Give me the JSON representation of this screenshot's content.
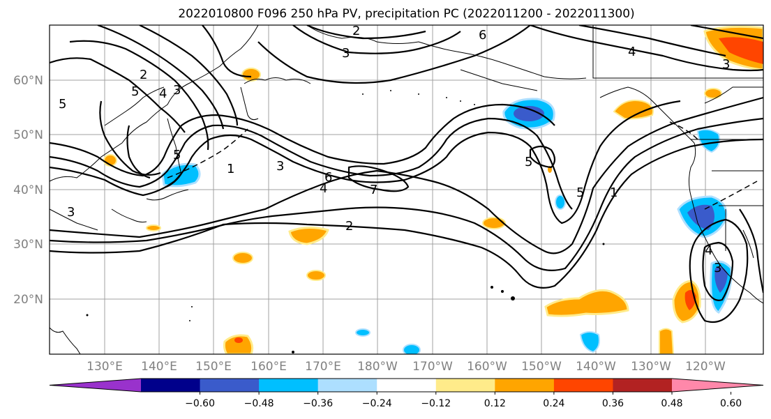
{
  "title": "2022010800 F096 250 hPa PV, precipitation PC (2022011200 - 2022011300)",
  "lat_labels": [
    "60°N",
    "50°N",
    "40°N",
    "30°N",
    "20°N"
  ],
  "lon_labels": [
    "130°E",
    "140°E",
    "150°E",
    "160°E",
    "170°E",
    "180°W",
    "170°W",
    "160°W",
    "150°W",
    "140°W",
    "130°W",
    "120°W"
  ],
  "colorbar": {
    "colors": [
      "#9932CC",
      "#00008B",
      "#3A5BCB",
      "#00BFFF",
      "#ADDFFF",
      "#FFFFFF",
      "#FFEB8A",
      "#FFA500",
      "#FF4500",
      "#B22222",
      "#FF88AA"
    ],
    "ticks": [
      "−0.60",
      "−0.48",
      "−0.36",
      "−0.24",
      "−0.12",
      "0.12",
      "0.24",
      "0.36",
      "0.48",
      "0.60"
    ]
  },
  "contour_labels": [
    "2",
    "6",
    "3",
    "2",
    "3",
    "4",
    "5",
    "4",
    "3",
    "5",
    "5",
    "1",
    "3",
    "6",
    "4",
    "7",
    "2",
    "5",
    "5",
    "1",
    "4",
    "3",
    "3"
  ]
}
